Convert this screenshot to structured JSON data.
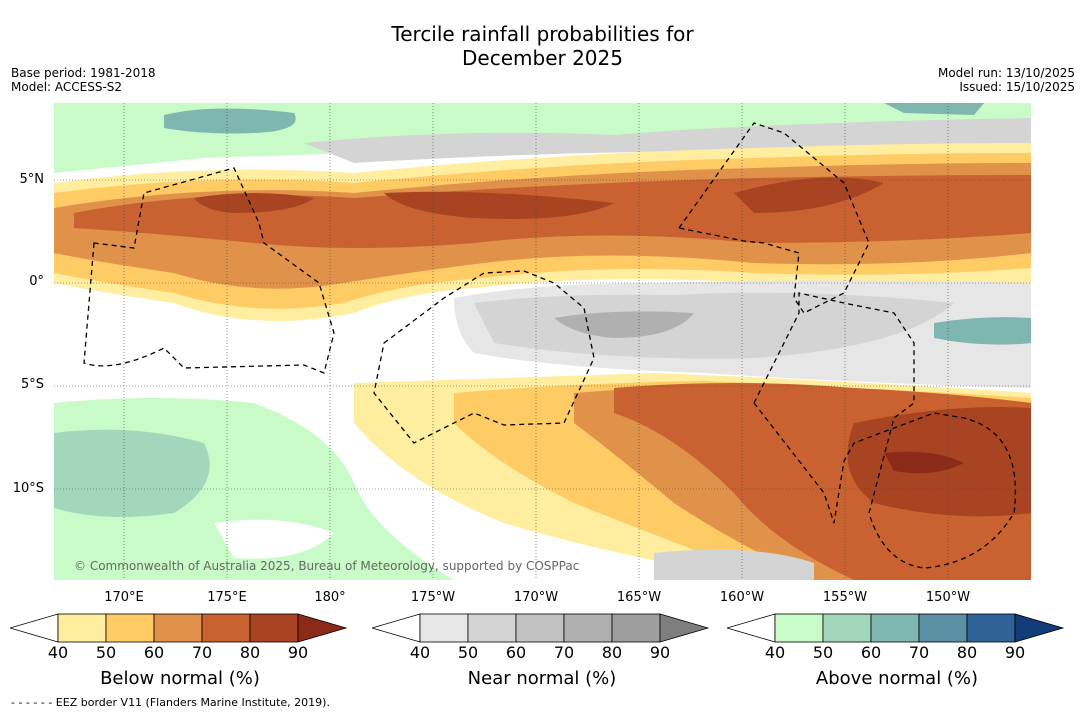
{
  "title_line1": "Tercile rainfall probabilities for",
  "title_line2": "December 2025",
  "meta_left": {
    "base_period": "Base period: 1981-2018",
    "model": "Model: ACCESS-S2"
  },
  "meta_right": {
    "model_run": "Model run: 13/10/2025",
    "issued": "Issued: 15/10/2025"
  },
  "lat_labels": [
    "5°N",
    "0°",
    "5°S",
    "10°S"
  ],
  "lon_labels": [
    "170°E",
    "175°E",
    "180°",
    "175°W",
    "170°W",
    "165°W",
    "160°W",
    "155°W",
    "150°W"
  ],
  "copyright": "© Commonwealth of Australia 2025, Bureau of Meteorology, supported by COSPPac",
  "colorbars": [
    {
      "label": "Below normal (%)",
      "ticks": [
        "40",
        "50",
        "60",
        "70",
        "80",
        "90"
      ],
      "colors": [
        "#ffffff",
        "#ffeda0",
        "#fecb64",
        "#e0914a",
        "#c96230",
        "#a84422",
        "#8b2a18"
      ]
    },
    {
      "label": "Near normal (%)",
      "ticks": [
        "40",
        "50",
        "60",
        "70",
        "80",
        "90"
      ],
      "colors": [
        "#ffffff",
        "#e6e6e6",
        "#d4d4d4",
        "#c2c2c2",
        "#b0b0b0",
        "#9e9e9e",
        "#7e7e7e"
      ]
    },
    {
      "label": "Above normal (%)",
      "ticks": [
        "40",
        "50",
        "60",
        "70",
        "80",
        "90"
      ],
      "colors": [
        "#ffffff",
        "#c9fbc9",
        "#a3d7bb",
        "#7fb6b0",
        "#5b8fa3",
        "#2f6398",
        "#123c78"
      ]
    }
  ],
  "footer": "- -  - -  - - EEZ border V11 (Flanders Marine Institute, 2019)."
}
